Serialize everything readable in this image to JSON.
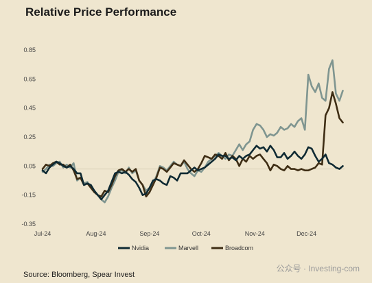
{
  "chart_data": {
    "type": "line",
    "title": "Relative Price Performance",
    "source": "Source: Bloomberg, Spear Invest",
    "watermark": "公众号 · Investing-com",
    "ylim": [
      -0.35,
      0.85
    ],
    "yticks": [
      0.85,
      0.65,
      0.45,
      0.25,
      0.05,
      -0.15,
      -0.35
    ],
    "ytick_labels": [
      "0.85",
      "0.65",
      "0.45",
      "0.25",
      "0.05",
      "-0.15",
      "-0.35"
    ],
    "xlim": [
      0,
      175
    ],
    "xticks": [
      {
        "label": "Jul-24",
        "x": 0
      },
      {
        "label": "Aug-24",
        "x": 31
      },
      {
        "label": "Sep-24",
        "x": 62
      },
      {
        "label": "Oct-24",
        "x": 92
      },
      {
        "label": "Nov-24",
        "x": 123
      },
      {
        "label": "Dec-24",
        "x": 153
      }
    ],
    "baseline": 0.03,
    "legend_position": "bottom",
    "series": [
      {
        "name": "Nvidia",
        "color": "#0f2a33",
        "x": [
          0,
          2,
          4,
          6,
          8,
          10,
          12,
          14,
          16,
          18,
          20,
          22,
          24,
          26,
          28,
          30,
          32,
          34,
          36,
          38,
          40,
          42,
          44,
          46,
          48,
          50,
          52,
          54,
          56,
          58,
          60,
          62,
          64,
          66,
          68,
          70,
          72,
          74,
          76,
          78,
          80,
          82,
          84,
          86,
          88,
          90,
          92,
          94,
          96,
          98,
          100,
          102,
          104,
          106,
          108,
          110,
          112,
          114,
          116,
          118,
          120,
          122,
          124,
          126,
          128,
          130,
          132,
          134,
          136,
          138,
          140,
          142,
          144,
          146,
          148,
          150,
          152,
          154,
          156,
          158,
          160,
          162,
          164,
          166,
          168,
          170,
          172,
          174
        ],
        "values": [
          0.02,
          0.0,
          0.04,
          0.06,
          0.08,
          0.07,
          0.05,
          0.04,
          0.05,
          0.03,
          0.0,
          0.0,
          -0.08,
          -0.07,
          -0.08,
          -0.12,
          -0.15,
          -0.18,
          -0.15,
          -0.12,
          -0.06,
          0.0,
          0.01,
          0.0,
          0.01,
          -0.01,
          -0.04,
          -0.06,
          -0.1,
          -0.15,
          -0.14,
          -0.1,
          -0.05,
          -0.04,
          -0.05,
          -0.07,
          -0.08,
          -0.02,
          -0.03,
          -0.05,
          0.0,
          0.0,
          0.0,
          0.02,
          0.04,
          0.02,
          0.03,
          0.04,
          0.06,
          0.08,
          0.1,
          0.13,
          0.12,
          0.12,
          0.1,
          0.11,
          0.09,
          0.12,
          0.1,
          0.12,
          0.13,
          0.16,
          0.19,
          0.17,
          0.18,
          0.15,
          0.19,
          0.16,
          0.11,
          0.11,
          0.14,
          0.1,
          0.12,
          0.15,
          0.12,
          0.1,
          0.13,
          0.18,
          0.17,
          0.12,
          0.08,
          0.1,
          0.13,
          0.07,
          0.06,
          0.04,
          0.03,
          0.05
        ]
      },
      {
        "name": "Marvell",
        "color": "#7f9590",
        "x": [
          0,
          2,
          4,
          6,
          8,
          10,
          12,
          14,
          16,
          18,
          20,
          22,
          24,
          26,
          28,
          30,
          32,
          34,
          36,
          38,
          40,
          42,
          44,
          46,
          48,
          50,
          52,
          54,
          56,
          58,
          60,
          62,
          64,
          66,
          68,
          70,
          72,
          74,
          76,
          78,
          80,
          82,
          84,
          86,
          88,
          90,
          92,
          94,
          96,
          98,
          100,
          102,
          104,
          106,
          108,
          110,
          112,
          114,
          116,
          118,
          120,
          122,
          124,
          126,
          128,
          130,
          132,
          134,
          136,
          138,
          140,
          142,
          144,
          146,
          148,
          150,
          152,
          154,
          156,
          158,
          160,
          162,
          164,
          166,
          168,
          170,
          172,
          174
        ],
        "values": [
          0.01,
          0.03,
          0.06,
          0.05,
          0.07,
          0.08,
          0.04,
          0.06,
          0.04,
          0.07,
          -0.05,
          -0.03,
          -0.07,
          -0.06,
          -0.1,
          -0.12,
          -0.15,
          -0.18,
          -0.2,
          -0.16,
          -0.1,
          -0.05,
          0.01,
          0.02,
          0.0,
          0.04,
          0.0,
          0.02,
          -0.05,
          -0.08,
          -0.12,
          -0.1,
          -0.07,
          -0.02,
          0.05,
          0.04,
          0.02,
          0.05,
          0.08,
          0.06,
          0.05,
          0.08,
          0.03,
          0.0,
          -0.02,
          0.02,
          0.01,
          0.04,
          0.08,
          0.1,
          0.12,
          0.14,
          0.12,
          0.1,
          0.13,
          0.12,
          0.16,
          0.2,
          0.16,
          0.2,
          0.22,
          0.3,
          0.34,
          0.33,
          0.3,
          0.25,
          0.27,
          0.26,
          0.28,
          0.32,
          0.3,
          0.31,
          0.34,
          0.32,
          0.36,
          0.38,
          0.3,
          0.68,
          0.6,
          0.56,
          0.62,
          0.52,
          0.5,
          0.72,
          0.78,
          0.55,
          0.5,
          0.57
        ]
      },
      {
        "name": "Broadcom",
        "color": "#3e2d14",
        "x": [
          0,
          2,
          4,
          6,
          8,
          10,
          12,
          14,
          16,
          18,
          20,
          22,
          24,
          26,
          28,
          30,
          32,
          34,
          36,
          38,
          40,
          42,
          44,
          46,
          48,
          50,
          52,
          54,
          56,
          58,
          60,
          62,
          64,
          66,
          68,
          70,
          72,
          74,
          76,
          78,
          80,
          82,
          84,
          86,
          88,
          90,
          92,
          94,
          96,
          98,
          100,
          102,
          104,
          106,
          108,
          110,
          112,
          114,
          116,
          118,
          120,
          122,
          124,
          126,
          128,
          130,
          132,
          134,
          136,
          138,
          140,
          142,
          144,
          146,
          148,
          150,
          152,
          154,
          156,
          158,
          160,
          162,
          164,
          166,
          168,
          170,
          172,
          174
        ],
        "values": [
          0.03,
          0.06,
          0.05,
          0.07,
          0.08,
          0.06,
          0.06,
          0.04,
          0.06,
          0.02,
          -0.04,
          -0.03,
          -0.08,
          -0.07,
          -0.1,
          -0.13,
          -0.15,
          -0.16,
          -0.12,
          -0.13,
          -0.08,
          -0.02,
          0.02,
          0.03,
          0.01,
          0.03,
          0.01,
          0.03,
          -0.05,
          -0.08,
          -0.16,
          -0.13,
          -0.08,
          -0.03,
          0.04,
          0.03,
          0.01,
          0.04,
          0.07,
          0.06,
          0.05,
          0.09,
          0.06,
          0.03,
          0.01,
          0.03,
          0.07,
          0.12,
          0.11,
          0.1,
          0.13,
          0.12,
          0.1,
          0.14,
          0.09,
          0.12,
          0.1,
          0.05,
          0.1,
          0.08,
          0.12,
          0.1,
          0.12,
          0.13,
          0.1,
          0.07,
          0.02,
          0.06,
          0.05,
          0.03,
          0.02,
          0.05,
          0.03,
          0.03,
          0.02,
          0.03,
          0.02,
          0.02,
          0.03,
          0.04,
          0.07,
          0.06,
          0.4,
          0.45,
          0.56,
          0.48,
          0.38,
          0.35
        ]
      }
    ]
  }
}
